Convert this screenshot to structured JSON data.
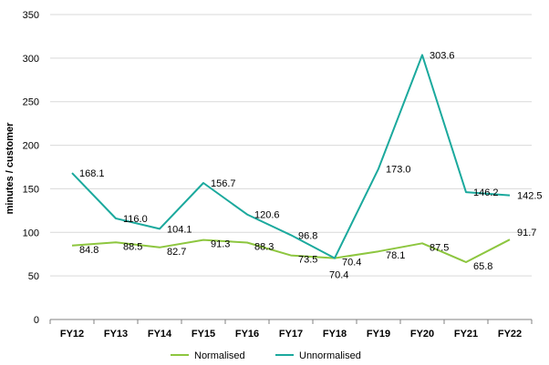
{
  "chart_data": {
    "type": "line",
    "categories": [
      "FY12",
      "FY13",
      "FY14",
      "FY15",
      "FY16",
      "FY17",
      "FY18",
      "FY19",
      "FY20",
      "FY21",
      "FY22"
    ],
    "series": [
      {
        "name": "Normalised",
        "color": "#8DC63F",
        "values": [
          84.8,
          88.5,
          82.7,
          91.3,
          88.3,
          73.5,
          70.4,
          78.1,
          87.5,
          65.8,
          91.7
        ],
        "labels": [
          "84.8",
          "88.5",
          "82.7",
          "91.3",
          "88.3",
          "73.5",
          "70.4",
          "78.1",
          "87.5",
          "65.8",
          "91.7"
        ]
      },
      {
        "name": "Unnormalised",
        "color": "#1BA99D",
        "values": [
          168.1,
          116.0,
          104.1,
          156.7,
          120.6,
          96.8,
          70.4,
          173.0,
          303.6,
          146.2,
          142.5
        ],
        "labels": [
          "168.1",
          "116.0",
          "104.1",
          "156.7",
          "120.6",
          "96.8",
          "70.4",
          "173.0",
          "303.6",
          "146.2",
          "142.5"
        ]
      }
    ],
    "ylabel": "minutes / customer",
    "xlabel": "",
    "ylim": [
      0,
      350
    ],
    "yticks": [
      "0",
      "50",
      "100",
      "150",
      "200",
      "250",
      "300",
      "350"
    ],
    "grid": true,
    "legend_position": "bottom"
  }
}
